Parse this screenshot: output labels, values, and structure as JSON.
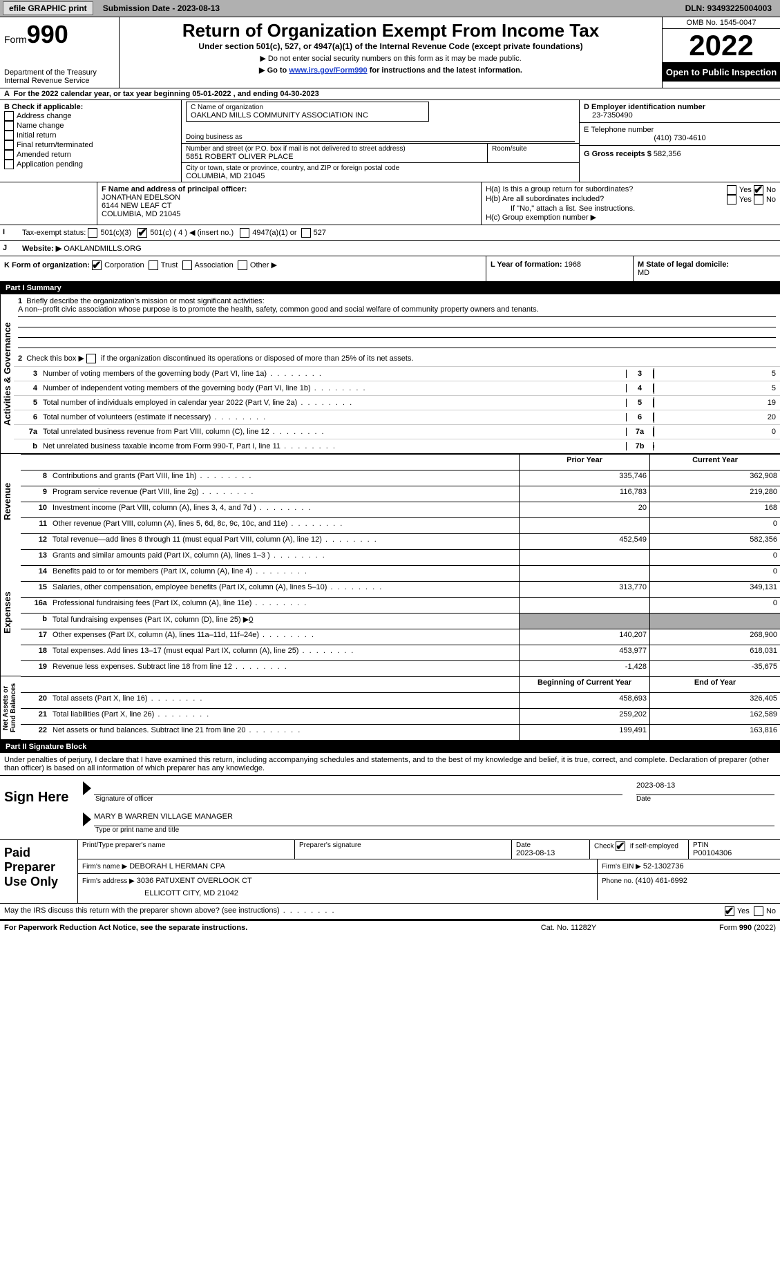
{
  "topbar": {
    "efile_btn": "efile GRAPHIC print",
    "submission": "Submission Date - 2023-08-13",
    "dln": "DLN: 93493225004003"
  },
  "header": {
    "form_prefix": "Form",
    "form_number": "990",
    "dept": "Department of the Treasury",
    "irs": "Internal Revenue Service",
    "title": "Return of Organization Exempt From Income Tax",
    "subtitle": "Under section 501(c), 527, or 4947(a)(1) of the Internal Revenue Code (except private foundations)",
    "note1": "▶ Do not enter social security numbers on this form as it may be made public.",
    "note2_pre": "▶ Go to ",
    "note2_link": "www.irs.gov/Form990",
    "note2_post": " for instructions and the latest information.",
    "omb": "OMB No. 1545-0047",
    "year": "2022",
    "open_pub": "Open to Public Inspection"
  },
  "A": {
    "text": "For the 2022 calendar year, or tax year beginning 05-01-2022    , and ending 04-30-2023"
  },
  "B": {
    "label": "B Check if applicable:",
    "items": [
      "Address change",
      "Name change",
      "Initial return",
      "Final return/terminated",
      "Amended return",
      "Application pending"
    ]
  },
  "C": {
    "name_label": "C Name of organization",
    "name": "OAKLAND MILLS COMMUNITY ASSOCIATION INC",
    "dba_label": "Doing business as",
    "dba": "",
    "street_label": "Number and street (or P.O. box if mail is not delivered to street address)",
    "room_label": "Room/suite",
    "street": "5851 ROBERT OLIVER PLACE",
    "city_label": "City or town, state or province, country, and ZIP or foreign postal code",
    "city": "COLUMBIA, MD  21045"
  },
  "D": {
    "label": "D Employer identification number",
    "value": "23-7350490"
  },
  "E": {
    "label": "E Telephone number",
    "value": "(410) 730-4610"
  },
  "G": {
    "label": "G Gross receipts $",
    "value": "582,356"
  },
  "F": {
    "label": "F  Name and address of principal officer:",
    "name": "JONATHAN EDELSON",
    "addr1": "6144 NEW LEAF CT",
    "addr2": "COLUMBIA, MD  21045"
  },
  "H": {
    "a": "H(a)  Is this a group return for subordinates?",
    "b": "H(b)  Are all subordinates included?",
    "bnote": "If \"No,\" attach a list. See instructions.",
    "c": "H(c)  Group exemption number ▶",
    "yes": "Yes",
    "no": "No"
  },
  "I": {
    "label": "Tax-exempt status:",
    "opts": [
      "501(c)(3)",
      "501(c) ( 4 ) ◀ (insert no.)",
      "4947(a)(1) or",
      "527"
    ]
  },
  "J": {
    "label": "Website: ▶",
    "value": "OAKLANDMILLS.ORG"
  },
  "K": {
    "label": "K Form of organization:",
    "opts": [
      "Corporation",
      "Trust",
      "Association",
      "Other ▶"
    ]
  },
  "L": {
    "label": "L Year of formation:",
    "value": "1968"
  },
  "M": {
    "label": "M State of legal domicile:",
    "value": "MD"
  },
  "partI": {
    "header": "Part I      Summary",
    "q1": "Briefly describe the organization's mission or most significant activities:",
    "q1ans": "A non--profit civic association whose purpose is to promote the health, safety, common good and social welfare of community property owners and tenants.",
    "q2": "Check this box ▶        if the organization discontinued its operations or disposed of more than 25% of its net assets.",
    "rows": [
      {
        "n": "3",
        "d": "Number of voting members of the governing body (Part VI, line 1a)",
        "box": "3",
        "v": "5"
      },
      {
        "n": "4",
        "d": "Number of independent voting members of the governing body (Part VI, line 1b)",
        "box": "4",
        "v": "5"
      },
      {
        "n": "5",
        "d": "Total number of individuals employed in calendar year 2022 (Part V, line 2a)",
        "box": "5",
        "v": "19"
      },
      {
        "n": "6",
        "d": "Total number of volunteers (estimate if necessary)",
        "box": "6",
        "v": "20"
      },
      {
        "n": "7a",
        "d": "Total unrelated business revenue from Part VIII, column (C), line 12",
        "box": "7a",
        "v": "0"
      },
      {
        "n": "b",
        "d": "Net unrelated business taxable income from Form 990-T, Part I, line 11",
        "box": "7b",
        "v": ""
      }
    ],
    "colhdr_prior": "Prior Year",
    "colhdr_current": "Current Year",
    "revenue_label": "Revenue",
    "expenses_label": "Expenses",
    "netassets_label": "Net Assets or Fund Balances",
    "activities_label": "Activities & Governance",
    "fin": [
      {
        "n": "8",
        "d": "Contributions and grants (Part VIII, line 1h)",
        "p": "335,746",
        "c": "362,908"
      },
      {
        "n": "9",
        "d": "Program service revenue (Part VIII, line 2g)",
        "p": "116,783",
        "c": "219,280"
      },
      {
        "n": "10",
        "d": "Investment income (Part VIII, column (A), lines 3, 4, and 7d )",
        "p": "20",
        "c": "168"
      },
      {
        "n": "11",
        "d": "Other revenue (Part VIII, column (A), lines 5, 6d, 8c, 9c, 10c, and 11e)",
        "p": "",
        "c": "0"
      },
      {
        "n": "12",
        "d": "Total revenue—add lines 8 through 11 (must equal Part VIII, column (A), line 12)",
        "p": "452,549",
        "c": "582,356"
      },
      {
        "n": "13",
        "d": "Grants and similar amounts paid (Part IX, column (A), lines 1–3 )",
        "p": "",
        "c": "0"
      },
      {
        "n": "14",
        "d": "Benefits paid to or for members (Part IX, column (A), line 4)",
        "p": "",
        "c": "0"
      },
      {
        "n": "15",
        "d": "Salaries, other compensation, employee benefits (Part IX, column (A), lines 5–10)",
        "p": "313,770",
        "c": "349,131"
      },
      {
        "n": "16a",
        "d": "Professional fundraising fees (Part IX, column (A), line 11e)",
        "p": "",
        "c": "0"
      },
      {
        "n": "b",
        "d": "Total fundraising expenses (Part IX, column (D), line 25) ▶0",
        "p": "GREY",
        "c": "GREY"
      },
      {
        "n": "17",
        "d": "Other expenses (Part IX, column (A), lines 11a–11d, 11f–24e)",
        "p": "140,207",
        "c": "268,900"
      },
      {
        "n": "18",
        "d": "Total expenses. Add lines 13–17 (must equal Part IX, column (A), line 25)",
        "p": "453,977",
        "c": "618,031"
      },
      {
        "n": "19",
        "d": "Revenue less expenses. Subtract line 18 from line 12",
        "p": "-1,428",
        "c": "-35,675"
      }
    ],
    "net_hdr_b": "Beginning of Current Year",
    "net_hdr_e": "End of Year",
    "net": [
      {
        "n": "20",
        "d": "Total assets (Part X, line 16)",
        "p": "458,693",
        "c": "326,405"
      },
      {
        "n": "21",
        "d": "Total liabilities (Part X, line 26)",
        "p": "259,202",
        "c": "162,589"
      },
      {
        "n": "22",
        "d": "Net assets or fund balances. Subtract line 21 from line 20",
        "p": "199,491",
        "c": "163,816"
      }
    ]
  },
  "partII": {
    "header": "Part II     Signature Block",
    "perjury": "Under penalties of perjury, I declare that I have examined this return, including accompanying schedules and statements, and to the best of my knowledge and belief, it is true, correct, and complete. Declaration of preparer (other than officer) is based on all information of which preparer has any knowledge.",
    "sign_here": "Sign Here",
    "sig_officer": "Signature of officer",
    "date": "Date",
    "sig_date": "2023-08-13",
    "printed": "MARY B WARREN  VILLAGE MANAGER",
    "printed_label": "Type or print name and title",
    "paid": "Paid Preparer Use Only",
    "prep_name_label": "Print/Type preparer's name",
    "prep_sig_label": "Preparer's signature",
    "prep_date_label": "Date",
    "prep_date": "2023-08-13",
    "check_self": "Check         if self-employed",
    "ptin_label": "PTIN",
    "ptin": "P00104306",
    "firm_name_label": "Firm's name      ▶",
    "firm_name": "DEBORAH L HERMAN CPA",
    "firm_ein_label": "Firm's EIN ▶",
    "firm_ein": "52-1302736",
    "firm_addr_label": "Firm's address ▶",
    "firm_addr1": "3036 PATUXENT OVERLOOK CT",
    "firm_addr2": "ELLICOTT CITY, MD  21042",
    "phone_label": "Phone no.",
    "phone": "(410) 461-6992",
    "discuss": "May the IRS discuss this return with the preparer shown above? (see instructions)",
    "yes": "Yes",
    "no": "No"
  },
  "footer": {
    "left": "For Paperwork Reduction Act Notice, see the separate instructions.",
    "mid": "Cat. No. 11282Y",
    "right": "Form 990 (2022)"
  }
}
